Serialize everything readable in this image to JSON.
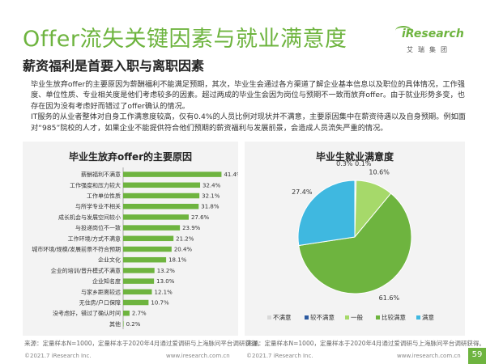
{
  "header": {
    "title": "Offer流失关键因素与就业满意度",
    "subtitle": "薪资福利是首要入职与离职因素",
    "logo_text": "iResearch",
    "logo_sub": "艾瑞集团"
  },
  "body": {
    "para1": "毕业生放弃offer的主要原因为薪酬福利不能满足预期，其次，毕业生会通过各方渠道了解企业基本信息以及职位的具体情况，工作强度、单位性质、专业相关度是他们考虑较多的因素。超过两成的毕业生会因为岗位与预期不一致而放弃offer。由于就业形势多变，也存在因为没有考虑好而错过了offer确认的情况。",
    "para2": "IT服务的从业者整体对自身工作满意度较高，仅有0.4%的人员比例对现状并不满意，主要原因集中在薪资待遇以及自身预期。例如面对“985”院校的人才，如果企业不能提供符合他们预期的薪资福利与发展前景，会造成人员流失严重的情况。"
  },
  "chart_data": [
    {
      "type": "bar",
      "orientation": "horizontal",
      "title": "毕业生放弃offer的主要原因",
      "categories": [
        "薪酬福利不满意",
        "工作强度和压力较大",
        "工作单位性质",
        "与所学专业不相关",
        "成长机会与发展空间较小",
        "与投递岗位不一致",
        "工作环境/方式不满意",
        "城市环境/规模/发展前景不符合预期",
        "企业文化",
        "企业的培训/晋升模式不满意",
        "企业知名度",
        "与家乡距离较远",
        "无住房/户口保障",
        "没考虑好，错过了确认时间",
        "其他"
      ],
      "values": [
        41.4,
        32.4,
        32.1,
        31.8,
        27.6,
        23.9,
        21.2,
        20.4,
        18.1,
        13.2,
        13.0,
        12.1,
        10.7,
        2.7,
        0.2
      ],
      "value_labels": [
        "41.4%",
        "32.4%",
        "32.1%",
        "31.8%",
        "27.6%",
        "23.9%",
        "21.2%",
        "20.4%",
        "18.1%",
        "13.2%",
        "13.0%",
        "12.1%",
        "10.7%",
        "2.7%",
        "0.2%"
      ],
      "xlim": [
        0,
        45
      ],
      "color": "#6eb43f",
      "source": "来源：定量样本N=1000，定量样本于2020年4月通过爱调研与上海脉问平台调研获得。"
    },
    {
      "type": "pie",
      "title": "毕业生就业满意度",
      "labels": [
        "不满意",
        "较不满意",
        "一般",
        "比较满意",
        "满意"
      ],
      "values": [
        0.1,
        0.3,
        10.6,
        61.6,
        27.4
      ],
      "value_labels": [
        "0.1%",
        "0.3%",
        "10.6%",
        "61.6%",
        "27.4%"
      ],
      "colors": [
        "#d9d9d9",
        "#2c5aa0",
        "#a6d96a",
        "#6eb43f",
        "#3fb8e0"
      ],
      "legend_position": "bottom",
      "source": "来源：定量样本N=1000，定量样本于2020年4月通过爱调研与上海脉问平台调研获得。"
    }
  ],
  "footer": {
    "left_copy": "©2021.7 iResearch Inc.",
    "left_url": "www.iresearch.com.cn",
    "right_copy": "©2021.7 iResearch Inc.",
    "right_url": "www.iresearch.com.cn",
    "page": "59"
  }
}
